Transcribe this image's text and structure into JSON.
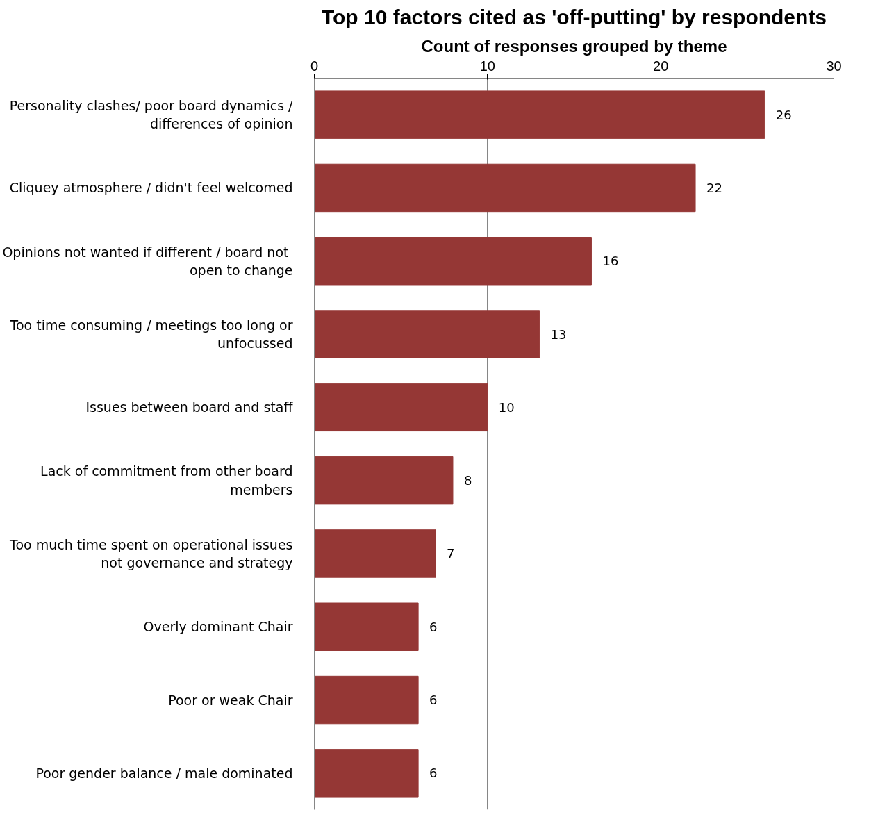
{
  "chart_data": {
    "type": "bar",
    "orientation": "horizontal",
    "title": "Top 10 factors cited as 'off-putting' by respondents",
    "subtitle": "Count of responses grouped by theme",
    "categories": [
      "Personality clashes/ poor board dynamics /\ndifferences of opinion",
      "Cliquey atmosphere / didn't feel welcomed",
      "Opinions not wanted if different  / board not\nopen to change",
      "Too time consuming / meetings too long or\nunfocussed",
      "Issues between board and staff",
      "Lack of commitment from other board\nmembers",
      "Too much time spent on operational issues\nnot governance and strategy",
      "Overly dominant Chair",
      "Poor or weak Chair",
      "Poor gender balance / male dominated"
    ],
    "values": [
      26,
      22,
      16,
      13,
      10,
      8,
      7,
      6,
      6,
      6
    ],
    "color": "#953735",
    "xlim": [
      0,
      30
    ],
    "xticks": [
      0,
      10,
      20,
      30
    ],
    "grid": "x",
    "data_labels": true
  }
}
